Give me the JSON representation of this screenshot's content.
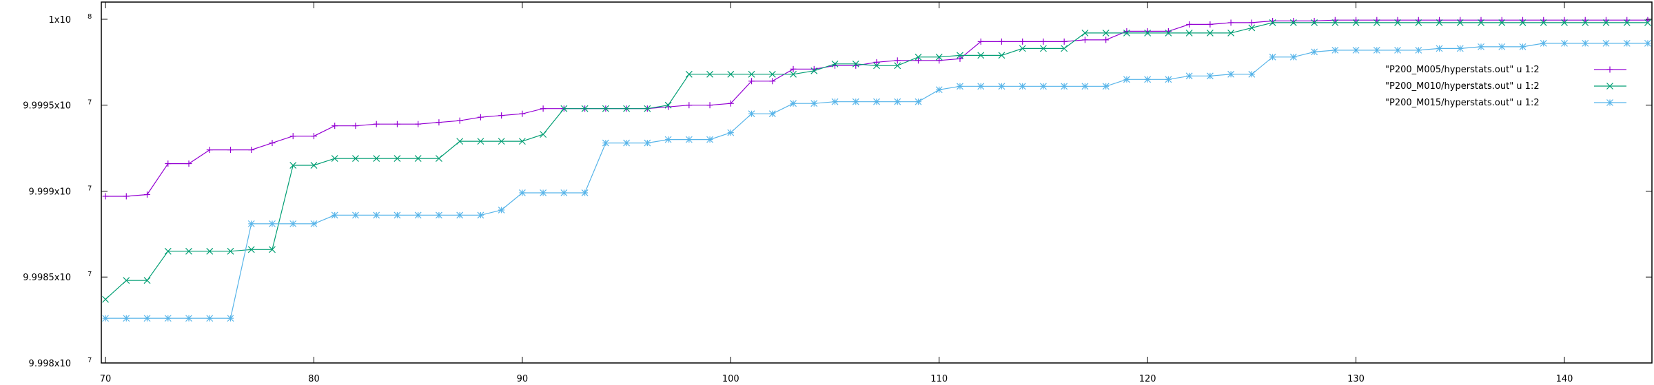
{
  "chart_data": {
    "type": "line",
    "title": "",
    "xlabel": "",
    "ylabel": "",
    "xlim": [
      69.8,
      144.2
    ],
    "ylim": [
      99980000,
      100001000
    ],
    "grid": false,
    "legend_position": "top-right",
    "x_ticks": [
      70,
      80,
      90,
      100,
      110,
      120,
      130,
      140
    ],
    "y_ticks": [
      {
        "value": 99980000,
        "label": "9.998x10",
        "exp": "7"
      },
      {
        "value": 99985000,
        "label": "9.9985x10",
        "exp": "7"
      },
      {
        "value": 99990000,
        "label": "9.999x10",
        "exp": "7"
      },
      {
        "value": 99995000,
        "label": "9.9995x10",
        "exp": "7"
      },
      {
        "value": 100000000,
        "label": "1x10",
        "exp": "8"
      }
    ],
    "x": [
      70,
      71,
      72,
      73,
      74,
      75,
      76,
      77,
      78,
      79,
      80,
      81,
      82,
      83,
      84,
      85,
      86,
      87,
      88,
      89,
      90,
      91,
      92,
      93,
      94,
      95,
      96,
      97,
      98,
      99,
      100,
      101,
      102,
      103,
      104,
      105,
      106,
      107,
      108,
      109,
      110,
      111,
      112,
      113,
      114,
      115,
      116,
      117,
      118,
      119,
      120,
      121,
      122,
      123,
      124,
      125,
      126,
      127,
      128,
      129,
      130,
      131,
      132,
      133,
      134,
      135,
      136,
      137,
      138,
      139,
      140,
      141,
      142,
      143,
      144
    ],
    "series": [
      {
        "name": "\"P200_M005/hyperstats.out\" u 1:2",
        "color": "#9400d3",
        "marker": "plus",
        "values": [
          99989700,
          99989700,
          99989800,
          99991600,
          99991600,
          99992400,
          99992400,
          99992400,
          99992800,
          99993200,
          99993200,
          99993800,
          99993800,
          99993900,
          99993900,
          99993900,
          99994000,
          99994100,
          99994300,
          99994400,
          99994500,
          99994800,
          99994800,
          99994800,
          99994800,
          99994800,
          99994800,
          99994900,
          99995000,
          99995000,
          99995100,
          99996400,
          99996400,
          99997100,
          99997100,
          99997300,
          99997300,
          99997500,
          99997600,
          99997600,
          99997600,
          99997700,
          99998700,
          99998700,
          99998700,
          99998700,
          99998700,
          99998800,
          99998800,
          99999300,
          99999300,
          99999300,
          99999700,
          99999700,
          99999800,
          99999800,
          99999900,
          99999900,
          99999900,
          99999950,
          99999950,
          99999950,
          99999950,
          99999950,
          99999950,
          99999950,
          99999950,
          99999950,
          99999950,
          99999950,
          99999950,
          99999950,
          99999950,
          99999950,
          99999950
        ]
      },
      {
        "name": "\"P200_M010/hyperstats.out\" u 1:2",
        "color": "#009e73",
        "marker": "cross",
        "values": [
          99983700,
          99984800,
          99984800,
          99986500,
          99986500,
          99986500,
          99986500,
          99986600,
          99986600,
          99991500,
          99991500,
          99991900,
          99991900,
          99991900,
          99991900,
          99991900,
          99991900,
          99992900,
          99992900,
          99992900,
          99992900,
          99993300,
          99994800,
          99994800,
          99994800,
          99994800,
          99994800,
          99995000,
          99996800,
          99996800,
          99996800,
          99996800,
          99996800,
          99996800,
          99997000,
          99997400,
          99997400,
          99997300,
          99997300,
          99997800,
          99997800,
          99997900,
          99997900,
          99997900,
          99998300,
          99998300,
          99998300,
          99999200,
          99999200,
          99999200,
          99999200,
          99999200,
          99999200,
          99999200,
          99999200,
          99999500,
          99999800,
          99999800,
          99999800,
          99999800,
          99999800,
          99999800,
          99999800,
          99999800,
          99999800,
          99999800,
          99999800,
          99999800,
          99999800,
          99999800,
          99999800,
          99999800,
          99999800,
          99999800,
          99999800
        ]
      },
      {
        "name": "\"P200_M015/hyperstats.out\" u 1:2",
        "color": "#56b4e9",
        "marker": "star",
        "values": [
          99982600,
          99982600,
          99982600,
          99982600,
          99982600,
          99982600,
          99982600,
          99988100,
          99988100,
          99988100,
          99988100,
          99988600,
          99988600,
          99988600,
          99988600,
          99988600,
          99988600,
          99988600,
          99988600,
          99988900,
          99989900,
          99989900,
          99989900,
          99989900,
          99992800,
          99992800,
          99992800,
          99993000,
          99993000,
          99993000,
          99993400,
          99994500,
          99994500,
          99995100,
          99995100,
          99995200,
          99995200,
          99995200,
          99995200,
          99995200,
          99995900,
          99996100,
          99996100,
          99996100,
          99996100,
          99996100,
          99996100,
          99996100,
          99996100,
          99996500,
          99996500,
          99996500,
          99996700,
          99996700,
          99996800,
          99996800,
          99997800,
          99997800,
          99998100,
          99998200,
          99998200,
          99998200,
          99998200,
          99998200,
          99998300,
          99998300,
          99998400,
          99998400,
          99998400,
          99998600,
          99998600,
          99998600,
          99998600,
          99998600,
          99998600
        ]
      }
    ]
  }
}
